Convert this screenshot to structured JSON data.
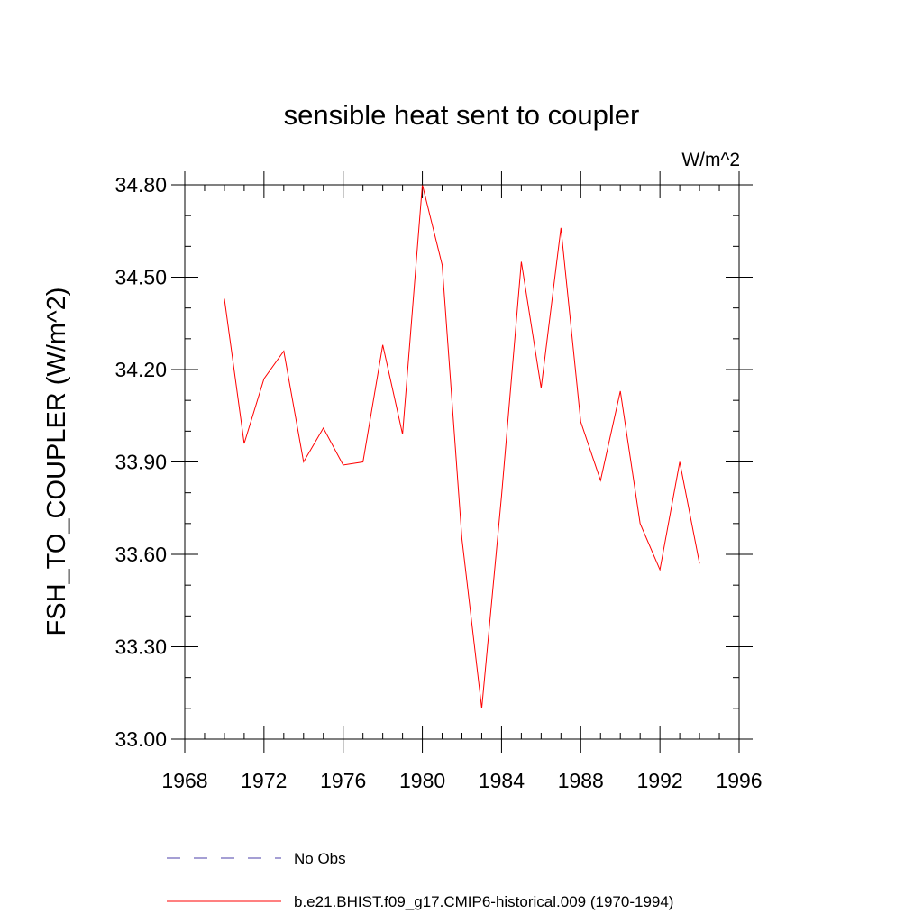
{
  "chart_data": {
    "type": "line",
    "title": "sensible heat sent to coupler",
    "units_label": "W/m^2",
    "xlabel": "",
    "ylabel": "FSH_TO_COUPLER  (W/m^2)",
    "xlim": [
      1968,
      1996
    ],
    "ylim": [
      33.0,
      34.8
    ],
    "x_ticks": [
      1968,
      1972,
      1976,
      1980,
      1984,
      1988,
      1992,
      1996
    ],
    "x_tick_labels": [
      "1968",
      "1972",
      "1976",
      "1980",
      "1984",
      "1988",
      "1992",
      "1996"
    ],
    "y_ticks": [
      33.0,
      33.3,
      33.6,
      33.9,
      34.2,
      34.5,
      34.8
    ],
    "y_tick_labels": [
      "33.00",
      "33.30",
      "33.60",
      "33.90",
      "34.20",
      "34.50",
      "34.80"
    ],
    "grid": false,
    "legend_position": "bottom",
    "x": [
      1970,
      1971,
      1972,
      1973,
      1974,
      1975,
      1976,
      1977,
      1978,
      1979,
      1980,
      1981,
      1982,
      1983,
      1984,
      1985,
      1986,
      1987,
      1988,
      1989,
      1990,
      1991,
      1992,
      1993,
      1994
    ],
    "series": [
      {
        "name": "b.e21.BHIST.f09_g17.CMIP6-historical.009 (1970-1994)",
        "color": "#ff0000",
        "dash": "solid",
        "values": [
          34.43,
          33.96,
          34.17,
          34.26,
          33.9,
          34.01,
          33.89,
          33.9,
          34.28,
          33.99,
          34.8,
          34.54,
          33.65,
          33.1,
          33.79,
          34.55,
          34.14,
          34.66,
          34.03,
          33.84,
          34.13,
          33.7,
          33.55,
          33.9,
          33.57
        ]
      }
    ],
    "legend": [
      {
        "label": "No Obs",
        "color": "#4b3fa8",
        "dash": "dashed"
      },
      {
        "label": "b.e21.BHIST.f09_g17.CMIP6-historical.009 (1970-1994)",
        "color": "#ff0000",
        "dash": "solid"
      }
    ]
  }
}
